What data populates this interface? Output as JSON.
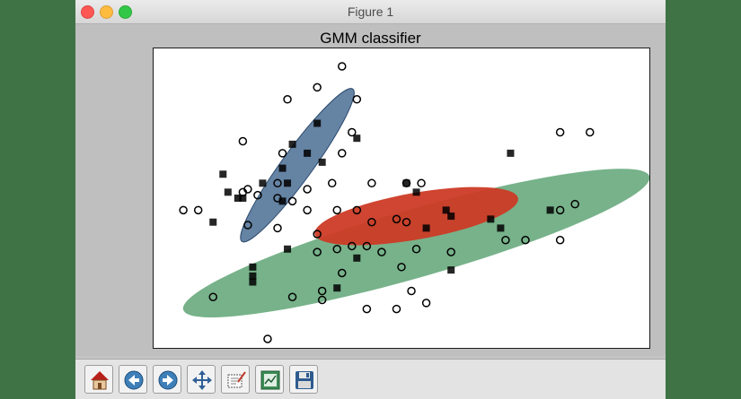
{
  "window": {
    "title": "Figure 1"
  },
  "chart_data": {
    "type": "scatter",
    "title": "GMM classifier",
    "xlabel": "",
    "ylabel": "",
    "xlim": [
      0,
      10
    ],
    "ylim": [
      0,
      10
    ],
    "grid": false,
    "legend": "none",
    "series": [
      {
        "marker": "circle-open",
        "points": [
          [
            3.8,
            9.4
          ],
          [
            3.3,
            8.7
          ],
          [
            2.7,
            8.3
          ],
          [
            4.1,
            8.3
          ],
          [
            4.0,
            7.2
          ],
          [
            8.2,
            7.2
          ],
          [
            8.8,
            7.2
          ],
          [
            1.8,
            6.9
          ],
          [
            2.6,
            6.5
          ],
          [
            3.8,
            6.5
          ],
          [
            2.5,
            5.5
          ],
          [
            3.6,
            5.5
          ],
          [
            4.4,
            5.5
          ],
          [
            5.1,
            5.5
          ],
          [
            5.4,
            5.5
          ],
          [
            1.9,
            5.3
          ],
          [
            1.8,
            5.2
          ],
          [
            2.1,
            5.1
          ],
          [
            3.1,
            5.3
          ],
          [
            2.5,
            5.0
          ],
          [
            2.8,
            4.9
          ],
          [
            0.6,
            4.6
          ],
          [
            0.9,
            4.6
          ],
          [
            1.9,
            4.1
          ],
          [
            3.1,
            4.6
          ],
          [
            3.7,
            4.6
          ],
          [
            4.1,
            4.6
          ],
          [
            4.4,
            4.2
          ],
          [
            4.9,
            4.3
          ],
          [
            5.1,
            4.2
          ],
          [
            2.5,
            4.0
          ],
          [
            3.3,
            3.8
          ],
          [
            3.3,
            3.2
          ],
          [
            3.7,
            3.3
          ],
          [
            4.0,
            3.4
          ],
          [
            4.3,
            3.4
          ],
          [
            5.3,
            3.3
          ],
          [
            6.0,
            3.2
          ],
          [
            7.1,
            3.6
          ],
          [
            7.5,
            3.6
          ],
          [
            8.2,
            3.6
          ],
          [
            8.2,
            4.6
          ],
          [
            8.5,
            4.8
          ],
          [
            3.8,
            2.5
          ],
          [
            4.6,
            3.2
          ],
          [
            5.0,
            2.7
          ],
          [
            1.2,
            1.7
          ],
          [
            2.8,
            1.7
          ],
          [
            3.4,
            1.9
          ],
          [
            3.4,
            1.6
          ],
          [
            4.3,
            1.3
          ],
          [
            4.9,
            1.3
          ],
          [
            5.2,
            1.9
          ],
          [
            5.5,
            1.5
          ],
          [
            2.3,
            0.3
          ]
        ]
      },
      {
        "marker": "square-filled",
        "points": [
          [
            3.3,
            7.5
          ],
          [
            4.1,
            7.0
          ],
          [
            2.8,
            6.8
          ],
          [
            3.1,
            6.5
          ],
          [
            3.4,
            6.2
          ],
          [
            2.6,
            6.0
          ],
          [
            1.4,
            5.8
          ],
          [
            2.2,
            5.5
          ],
          [
            1.5,
            5.2
          ],
          [
            1.7,
            5.0
          ],
          [
            2.7,
            5.5
          ],
          [
            2.6,
            4.9
          ],
          [
            1.2,
            4.2
          ],
          [
            1.8,
            5.0
          ],
          [
            7.2,
            6.5
          ],
          [
            5.1,
            5.5
          ],
          [
            5.3,
            5.2
          ],
          [
            5.9,
            4.6
          ],
          [
            6.0,
            4.4
          ],
          [
            5.5,
            4.0
          ],
          [
            7.0,
            4.0
          ],
          [
            6.8,
            4.3
          ],
          [
            8.0,
            4.6
          ],
          [
            2.7,
            3.3
          ],
          [
            2.0,
            2.7
          ],
          [
            2.0,
            2.2
          ],
          [
            4.1,
            3.0
          ],
          [
            6.0,
            2.6
          ],
          [
            2.0,
            2.4
          ],
          [
            3.7,
            2.0
          ]
        ]
      }
    ],
    "ellipses": [
      {
        "name": "",
        "center": [
          2.9,
          6.1
        ],
        "color": "#4a6d93"
      },
      {
        "name": "",
        "center": [
          5.3,
          3.5
        ],
        "color": "#5fa575"
      },
      {
        "name": "",
        "center": [
          5.3,
          4.4
        ],
        "color": "#cc3b26"
      }
    ]
  },
  "toolbar": {
    "buttons": [
      {
        "name": "home-button",
        "icon": "home-icon"
      },
      {
        "name": "back-button",
        "icon": "back-arrow-icon"
      },
      {
        "name": "forward-button",
        "icon": "forward-arrow-icon"
      },
      {
        "name": "pan-button",
        "icon": "move-arrows-icon"
      },
      {
        "name": "zoom-button",
        "icon": "zoom-rect-icon"
      },
      {
        "name": "configure-subplots-button",
        "icon": "subplots-icon"
      },
      {
        "name": "save-button",
        "icon": "floppy-disk-icon"
      }
    ]
  }
}
